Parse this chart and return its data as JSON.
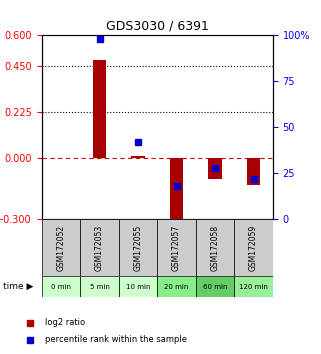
{
  "title": "GDS3030 / 6391",
  "samples": [
    "GSM172052",
    "GSM172053",
    "GSM172055",
    "GSM172057",
    "GSM172058",
    "GSM172059"
  ],
  "time_labels": [
    "0 min",
    "5 min",
    "10 min",
    "20 min",
    "60 min",
    "120 min"
  ],
  "log2_ratio": [
    0.0,
    0.48,
    0.01,
    -0.32,
    -0.1,
    -0.13
  ],
  "percentile_rank": [
    null,
    98,
    42,
    18,
    28,
    22
  ],
  "ylim_left": [
    -0.3,
    0.6
  ],
  "ylim_right": [
    0,
    100
  ],
  "yticks_left": [
    -0.3,
    0.0,
    0.225,
    0.45,
    0.6
  ],
  "yticks_right": [
    0,
    25,
    50,
    75,
    100
  ],
  "hlines": [
    0.45,
    0.225
  ],
  "bar_color": "#a80000",
  "dot_color": "#0000cc",
  "zero_line_color": "#cc0000",
  "background_color": "#ffffff",
  "grid_color": "#aaaaaa",
  "time_row_colors": [
    "#ccffcc",
    "#ccffcc",
    "#ccffcc",
    "#88ee88",
    "#66cc66",
    "#99ee99"
  ],
  "sample_row_color": "#cccccc"
}
